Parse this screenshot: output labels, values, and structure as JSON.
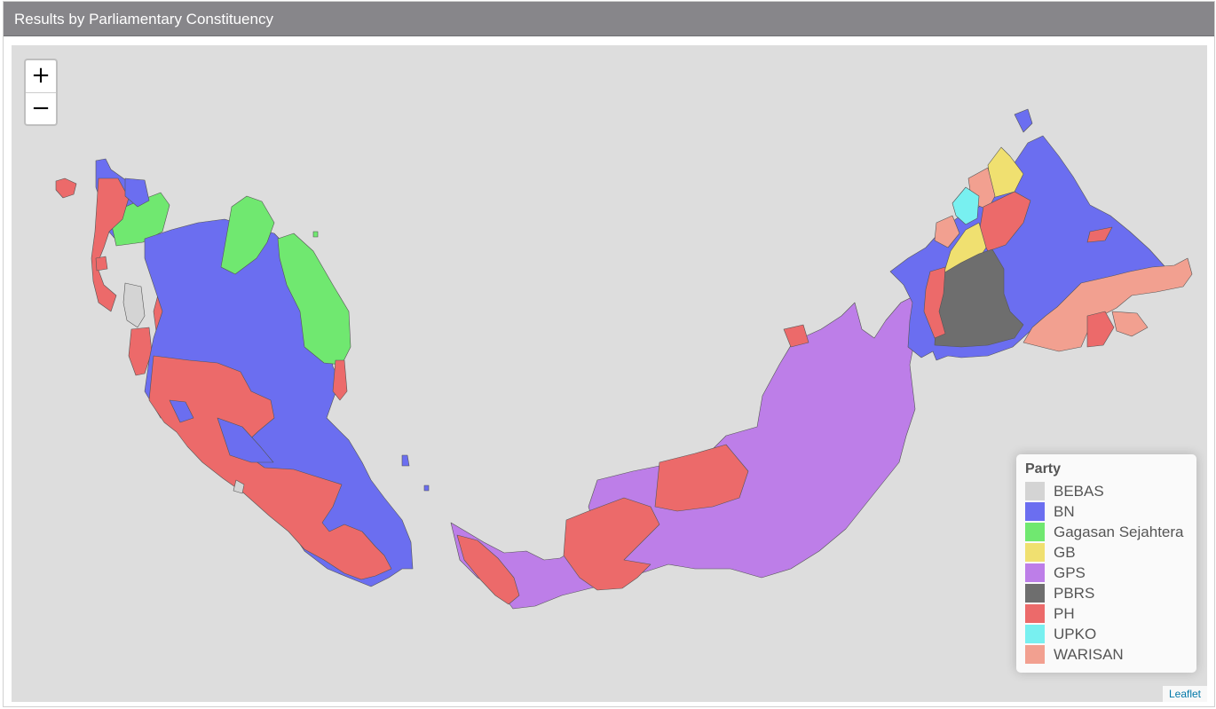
{
  "header": {
    "title": "Results by Parliamentary Constituency"
  },
  "zoom": {
    "in_label": "+",
    "out_label": "−"
  },
  "legend": {
    "title": "Party",
    "items": [
      {
        "label": "BEBAS",
        "color": "#d4d4d4"
      },
      {
        "label": "BN",
        "color": "#6b6ef0"
      },
      {
        "label": "Gagasan Sejahtera",
        "color": "#70e870"
      },
      {
        "label": "GB",
        "color": "#f0e070"
      },
      {
        "label": "GPS",
        "color": "#bd7ee8"
      },
      {
        "label": "PBRS",
        "color": "#6e6e6e"
      },
      {
        "label": "PH",
        "color": "#ec6a6a"
      },
      {
        "label": "UPKO",
        "color": "#78f0f0"
      },
      {
        "label": "WARISAN",
        "color": "#f2a090"
      }
    ]
  },
  "attribution": "Leaflet",
  "colors": {
    "map_background": "#dddddd",
    "header_background": "#87868a"
  }
}
